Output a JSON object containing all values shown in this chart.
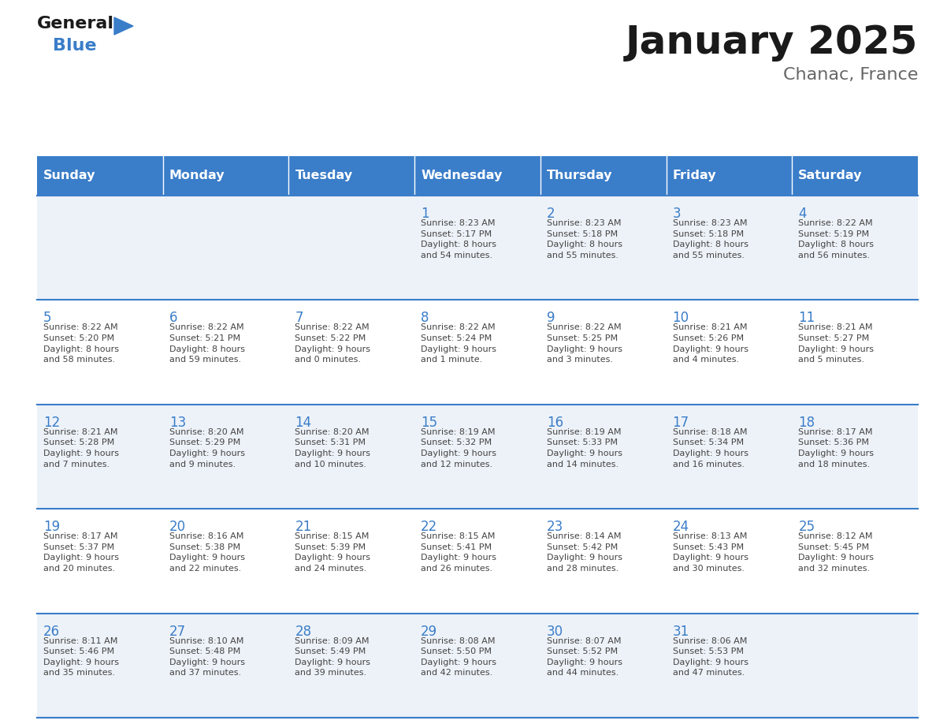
{
  "title": "January 2025",
  "subtitle": "Chanac, France",
  "days_of_week": [
    "Sunday",
    "Monday",
    "Tuesday",
    "Wednesday",
    "Thursday",
    "Friday",
    "Saturday"
  ],
  "header_bg": "#3a7dc9",
  "header_text": "#ffffff",
  "row_bg_light": "#edf2f8",
  "row_bg_white": "#ffffff",
  "date_text_color": "#3a7dc9",
  "cell_text_color": "#444444",
  "border_color": "#3a7dc9",
  "title_color": "#1a1a1a",
  "subtitle_color": "#666666",
  "logo_general_color": "#1a1a1a",
  "logo_blue_color": "#3a7dc9",
  "logo_triangle_color": "#3a7dc9",
  "weeks": [
    [
      {
        "day": null,
        "info": null
      },
      {
        "day": null,
        "info": null
      },
      {
        "day": null,
        "info": null
      },
      {
        "day": 1,
        "info": "Sunrise: 8:23 AM\nSunset: 5:17 PM\nDaylight: 8 hours\nand 54 minutes."
      },
      {
        "day": 2,
        "info": "Sunrise: 8:23 AM\nSunset: 5:18 PM\nDaylight: 8 hours\nand 55 minutes."
      },
      {
        "day": 3,
        "info": "Sunrise: 8:23 AM\nSunset: 5:18 PM\nDaylight: 8 hours\nand 55 minutes."
      },
      {
        "day": 4,
        "info": "Sunrise: 8:22 AM\nSunset: 5:19 PM\nDaylight: 8 hours\nand 56 minutes."
      }
    ],
    [
      {
        "day": 5,
        "info": "Sunrise: 8:22 AM\nSunset: 5:20 PM\nDaylight: 8 hours\nand 58 minutes."
      },
      {
        "day": 6,
        "info": "Sunrise: 8:22 AM\nSunset: 5:21 PM\nDaylight: 8 hours\nand 59 minutes."
      },
      {
        "day": 7,
        "info": "Sunrise: 8:22 AM\nSunset: 5:22 PM\nDaylight: 9 hours\nand 0 minutes."
      },
      {
        "day": 8,
        "info": "Sunrise: 8:22 AM\nSunset: 5:24 PM\nDaylight: 9 hours\nand 1 minute."
      },
      {
        "day": 9,
        "info": "Sunrise: 8:22 AM\nSunset: 5:25 PM\nDaylight: 9 hours\nand 3 minutes."
      },
      {
        "day": 10,
        "info": "Sunrise: 8:21 AM\nSunset: 5:26 PM\nDaylight: 9 hours\nand 4 minutes."
      },
      {
        "day": 11,
        "info": "Sunrise: 8:21 AM\nSunset: 5:27 PM\nDaylight: 9 hours\nand 5 minutes."
      }
    ],
    [
      {
        "day": 12,
        "info": "Sunrise: 8:21 AM\nSunset: 5:28 PM\nDaylight: 9 hours\nand 7 minutes."
      },
      {
        "day": 13,
        "info": "Sunrise: 8:20 AM\nSunset: 5:29 PM\nDaylight: 9 hours\nand 9 minutes."
      },
      {
        "day": 14,
        "info": "Sunrise: 8:20 AM\nSunset: 5:31 PM\nDaylight: 9 hours\nand 10 minutes."
      },
      {
        "day": 15,
        "info": "Sunrise: 8:19 AM\nSunset: 5:32 PM\nDaylight: 9 hours\nand 12 minutes."
      },
      {
        "day": 16,
        "info": "Sunrise: 8:19 AM\nSunset: 5:33 PM\nDaylight: 9 hours\nand 14 minutes."
      },
      {
        "day": 17,
        "info": "Sunrise: 8:18 AM\nSunset: 5:34 PM\nDaylight: 9 hours\nand 16 minutes."
      },
      {
        "day": 18,
        "info": "Sunrise: 8:17 AM\nSunset: 5:36 PM\nDaylight: 9 hours\nand 18 minutes."
      }
    ],
    [
      {
        "day": 19,
        "info": "Sunrise: 8:17 AM\nSunset: 5:37 PM\nDaylight: 9 hours\nand 20 minutes."
      },
      {
        "day": 20,
        "info": "Sunrise: 8:16 AM\nSunset: 5:38 PM\nDaylight: 9 hours\nand 22 minutes."
      },
      {
        "day": 21,
        "info": "Sunrise: 8:15 AM\nSunset: 5:39 PM\nDaylight: 9 hours\nand 24 minutes."
      },
      {
        "day": 22,
        "info": "Sunrise: 8:15 AM\nSunset: 5:41 PM\nDaylight: 9 hours\nand 26 minutes."
      },
      {
        "day": 23,
        "info": "Sunrise: 8:14 AM\nSunset: 5:42 PM\nDaylight: 9 hours\nand 28 minutes."
      },
      {
        "day": 24,
        "info": "Sunrise: 8:13 AM\nSunset: 5:43 PM\nDaylight: 9 hours\nand 30 minutes."
      },
      {
        "day": 25,
        "info": "Sunrise: 8:12 AM\nSunset: 5:45 PM\nDaylight: 9 hours\nand 32 minutes."
      }
    ],
    [
      {
        "day": 26,
        "info": "Sunrise: 8:11 AM\nSunset: 5:46 PM\nDaylight: 9 hours\nand 35 minutes."
      },
      {
        "day": 27,
        "info": "Sunrise: 8:10 AM\nSunset: 5:48 PM\nDaylight: 9 hours\nand 37 minutes."
      },
      {
        "day": 28,
        "info": "Sunrise: 8:09 AM\nSunset: 5:49 PM\nDaylight: 9 hours\nand 39 minutes."
      },
      {
        "day": 29,
        "info": "Sunrise: 8:08 AM\nSunset: 5:50 PM\nDaylight: 9 hours\nand 42 minutes."
      },
      {
        "day": 30,
        "info": "Sunrise: 8:07 AM\nSunset: 5:52 PM\nDaylight: 9 hours\nand 44 minutes."
      },
      {
        "day": 31,
        "info": "Sunrise: 8:06 AM\nSunset: 5:53 PM\nDaylight: 9 hours\nand 47 minutes."
      },
      {
        "day": null,
        "info": null
      }
    ]
  ]
}
